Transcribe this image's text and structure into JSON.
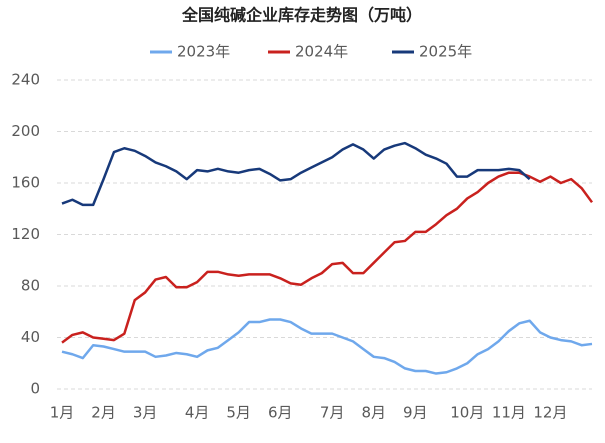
{
  "chart_data": {
    "type": "line",
    "title": "全国纯碱企业库存走势图（万吨）",
    "categories": [
      "1月",
      null,
      null,
      null,
      "2月",
      null,
      null,
      null,
      "3月",
      null,
      null,
      null,
      null,
      "4月",
      null,
      null,
      null,
      "5月",
      null,
      null,
      null,
      "6月",
      null,
      null,
      null,
      null,
      "7月",
      null,
      null,
      null,
      "8月",
      null,
      null,
      null,
      "9月",
      null,
      null,
      null,
      null,
      "10月",
      null,
      null,
      null,
      "11月",
      null,
      null,
      null,
      "12月",
      null,
      null,
      null,
      null
    ],
    "series": [
      {
        "name": "2023年",
        "color": "#6fa8ec",
        "values": [
          29,
          27,
          24,
          34,
          33,
          31,
          29,
          29,
          29,
          25,
          26,
          28,
          27,
          25,
          30,
          32,
          38,
          44,
          52,
          52,
          54,
          54,
          52,
          47,
          43,
          43,
          43,
          40,
          37,
          31,
          25,
          24,
          21,
          16,
          14,
          14,
          12,
          13,
          16,
          20,
          27,
          31,
          37,
          45,
          51,
          53,
          44,
          40,
          38,
          37,
          34,
          35
        ]
      },
      {
        "name": "2024年",
        "color": "#c9211e",
        "values": [
          36,
          42,
          44,
          40,
          39,
          38,
          43,
          69,
          75,
          85,
          87,
          79,
          79,
          83,
          91,
          91,
          89,
          88,
          89,
          89,
          89,
          86,
          82,
          81,
          86,
          90,
          97,
          98,
          90,
          90,
          98,
          106,
          114,
          115,
          122,
          122,
          128,
          135,
          140,
          148,
          153,
          160,
          165,
          168,
          168,
          165,
          161,
          165,
          160,
          163,
          156,
          145
        ]
      },
      {
        "name": "2025年",
        "color": "#17397a",
        "values": [
          144,
          147,
          143,
          143,
          163,
          184,
          187,
          185,
          181,
          176,
          173,
          169,
          163,
          170,
          169,
          171,
          169,
          168,
          170,
          171,
          167,
          162,
          163,
          168,
          172,
          176,
          180,
          186,
          190,
          186,
          179,
          186,
          189,
          191,
          187,
          182,
          179,
          175,
          165,
          165,
          170,
          170,
          170,
          171,
          170,
          163,
          null,
          null,
          null,
          null,
          null,
          null
        ]
      }
    ],
    "ylim": [
      0,
      240
    ],
    "yticks": [
      0,
      40,
      80,
      120,
      160,
      200,
      240
    ],
    "grid": true
  }
}
